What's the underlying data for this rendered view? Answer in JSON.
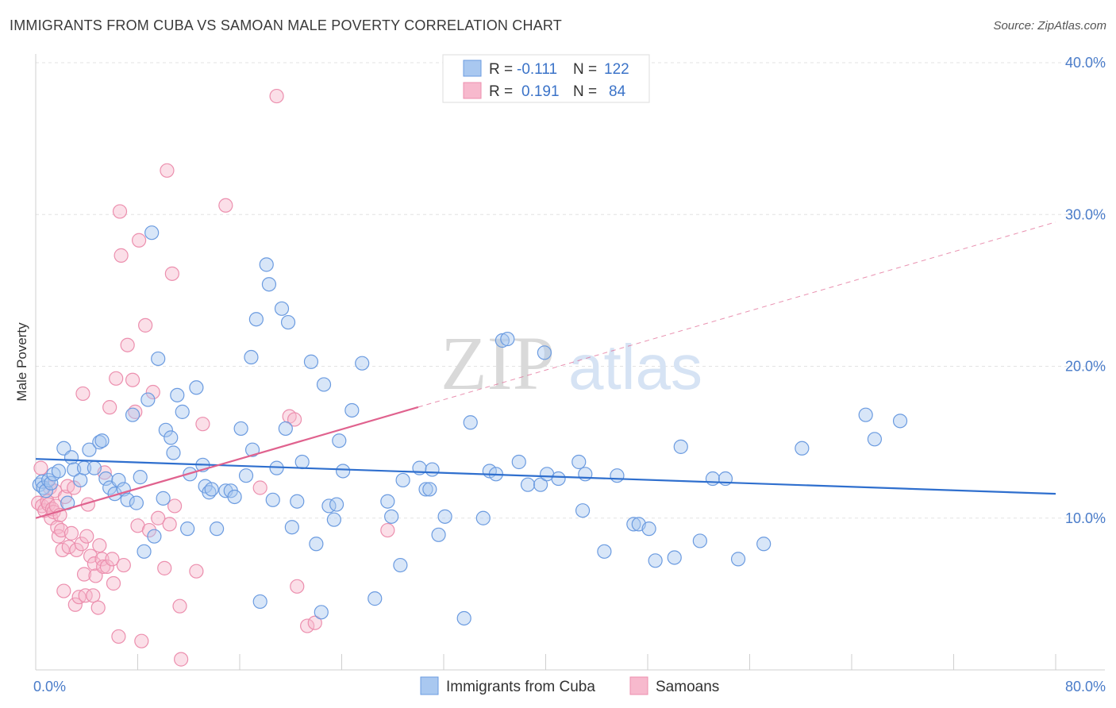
{
  "title": "IMMIGRANTS FROM CUBA VS SAMOAN MALE POVERTY CORRELATION CHART",
  "source": "Source: ZipAtlas.com",
  "watermark": {
    "zip": "ZIP",
    "atlas": "atlas"
  },
  "legend_top": [
    {
      "r_label": "R =",
      "r_value": "-0.111",
      "n_label": "N =",
      "n_value": "122"
    },
    {
      "r_label": "R =",
      "r_value": "0.191",
      "n_label": "N =",
      "n_value": "84"
    }
  ],
  "legend_bottom": [
    "Immigrants from Cuba",
    "Samoans"
  ],
  "chart_data": {
    "type": "scatter",
    "xlabel": "",
    "ylabel": "Male Poverty",
    "xlim": [
      0,
      80
    ],
    "ylim": [
      0,
      40
    ],
    "x_tick_labels": [
      {
        "value": 0,
        "label": "0.0%"
      },
      {
        "value": 80,
        "label": "80.0%"
      }
    ],
    "y_tick_labels": [
      {
        "value": 10,
        "label": "10.0%"
      },
      {
        "value": 20,
        "label": "20.0%"
      },
      {
        "value": 30,
        "label": "30.0%"
      },
      {
        "value": 40,
        "label": "40.0%"
      }
    ],
    "grid": true,
    "colors": {
      "cuba_fill": "#a9c8f0",
      "cuba_stroke": "#6b9be0",
      "cuba_line": "#2f6fce",
      "samoa_fill": "#f7b9cd",
      "samoa_stroke": "#ec8fae",
      "samoa_line": "#e0628e",
      "tick_label": "#4a7cc9"
    },
    "series": [
      {
        "name": "Immigrants from Cuba",
        "trend": {
          "x0": 0,
          "y0": 13.9,
          "x1": 80,
          "y1": 11.6
        },
        "points": [
          [
            0.3,
            12.2
          ],
          [
            0.5,
            12.4
          ],
          [
            0.6,
            12.0
          ],
          [
            0.8,
            11.8
          ],
          [
            1.0,
            12.5
          ],
          [
            1.2,
            12.3
          ],
          [
            1.4,
            12.9
          ],
          [
            1.8,
            13.1
          ],
          [
            2.2,
            14.6
          ],
          [
            2.5,
            11.0
          ],
          [
            2.8,
            14.0
          ],
          [
            3.0,
            13.2
          ],
          [
            3.5,
            12.5
          ],
          [
            3.8,
            13.3
          ],
          [
            4.2,
            14.5
          ],
          [
            4.6,
            13.3
          ],
          [
            5.0,
            15.0
          ],
          [
            5.2,
            15.1
          ],
          [
            5.5,
            12.6
          ],
          [
            5.8,
            12.0
          ],
          [
            6.2,
            11.6
          ],
          [
            6.5,
            12.5
          ],
          [
            6.9,
            11.9
          ],
          [
            7.2,
            11.2
          ],
          [
            7.6,
            16.8
          ],
          [
            7.9,
            11.0
          ],
          [
            8.2,
            12.7
          ],
          [
            8.5,
            7.8
          ],
          [
            8.8,
            17.8
          ],
          [
            9.1,
            28.8
          ],
          [
            9.3,
            8.8
          ],
          [
            9.6,
            20.5
          ],
          [
            10.0,
            11.3
          ],
          [
            10.2,
            15.8
          ],
          [
            10.6,
            15.3
          ],
          [
            10.8,
            14.3
          ],
          [
            11.1,
            18.1
          ],
          [
            11.5,
            17.0
          ],
          [
            11.9,
            9.3
          ],
          [
            12.1,
            12.9
          ],
          [
            12.6,
            18.6
          ],
          [
            13.1,
            13.5
          ],
          [
            13.3,
            12.1
          ],
          [
            13.6,
            11.7
          ],
          [
            13.8,
            11.9
          ],
          [
            14.2,
            9.3
          ],
          [
            14.9,
            11.8
          ],
          [
            15.3,
            11.8
          ],
          [
            15.6,
            11.4
          ],
          [
            16.1,
            15.9
          ],
          [
            16.5,
            12.8
          ],
          [
            16.9,
            20.6
          ],
          [
            17.0,
            14.5
          ],
          [
            17.3,
            23.1
          ],
          [
            17.6,
            4.5
          ],
          [
            18.1,
            26.7
          ],
          [
            18.3,
            25.4
          ],
          [
            18.6,
            11.2
          ],
          [
            18.9,
            13.3
          ],
          [
            19.3,
            23.8
          ],
          [
            19.6,
            15.9
          ],
          [
            19.8,
            22.9
          ],
          [
            20.1,
            9.4
          ],
          [
            20.5,
            11.1
          ],
          [
            20.9,
            13.7
          ],
          [
            21.6,
            20.3
          ],
          [
            22.0,
            8.3
          ],
          [
            22.4,
            3.8
          ],
          [
            22.6,
            18.8
          ],
          [
            23.0,
            10.8
          ],
          [
            23.4,
            9.9
          ],
          [
            23.6,
            10.9
          ],
          [
            23.8,
            15.1
          ],
          [
            24.1,
            13.1
          ],
          [
            24.8,
            17.1
          ],
          [
            25.6,
            20.2
          ],
          [
            26.6,
            4.7
          ],
          [
            27.6,
            11.1
          ],
          [
            27.9,
            10.1
          ],
          [
            28.6,
            6.9
          ],
          [
            28.8,
            12.5
          ],
          [
            30.1,
            13.3
          ],
          [
            30.6,
            11.9
          ],
          [
            30.9,
            11.9
          ],
          [
            31.1,
            13.2
          ],
          [
            31.6,
            8.9
          ],
          [
            32.1,
            10.1
          ],
          [
            33.6,
            3.4
          ],
          [
            34.1,
            16.3
          ],
          [
            35.1,
            10.0
          ],
          [
            35.6,
            13.1
          ],
          [
            36.1,
            12.9
          ],
          [
            36.6,
            21.7
          ],
          [
            37.0,
            21.8
          ],
          [
            37.9,
            13.7
          ],
          [
            38.6,
            12.2
          ],
          [
            39.6,
            12.2
          ],
          [
            39.9,
            20.9
          ],
          [
            40.1,
            12.9
          ],
          [
            41.0,
            12.6
          ],
          [
            42.6,
            13.7
          ],
          [
            42.9,
            10.5
          ],
          [
            43.1,
            12.9
          ],
          [
            44.6,
            7.8
          ],
          [
            45.6,
            12.8
          ],
          [
            46.9,
            9.6
          ],
          [
            47.3,
            9.6
          ],
          [
            48.1,
            9.3
          ],
          [
            48.6,
            7.2
          ],
          [
            50.1,
            7.4
          ],
          [
            50.6,
            14.7
          ],
          [
            52.1,
            8.5
          ],
          [
            53.1,
            12.6
          ],
          [
            54.1,
            12.6
          ],
          [
            55.1,
            7.3
          ],
          [
            57.1,
            8.3
          ],
          [
            60.1,
            14.6
          ],
          [
            65.1,
            16.8
          ],
          [
            65.8,
            15.2
          ],
          [
            67.8,
            16.4
          ]
        ]
      },
      {
        "name": "Samoans",
        "trend": {
          "x0": 0,
          "y0": 10.0,
          "x1": 80,
          "y1": 29.5,
          "solid_until_x": 30.0
        },
        "points": [
          [
            0.2,
            11.0
          ],
          [
            0.4,
            13.3
          ],
          [
            0.5,
            10.8
          ],
          [
            0.7,
            10.5
          ],
          [
            0.9,
            11.1
          ],
          [
            1.0,
            10.9
          ],
          [
            1.1,
            12.0
          ],
          [
            1.2,
            10.0
          ],
          [
            1.3,
            10.6
          ],
          [
            1.4,
            10.4
          ],
          [
            1.5,
            11.8
          ],
          [
            1.6,
            10.8
          ],
          [
            1.7,
            9.4
          ],
          [
            1.8,
            8.8
          ],
          [
            1.9,
            10.2
          ],
          [
            2.0,
            9.2
          ],
          [
            2.1,
            7.9
          ],
          [
            2.2,
            5.2
          ],
          [
            2.3,
            11.4
          ],
          [
            2.5,
            12.1
          ],
          [
            2.6,
            8.1
          ],
          [
            2.8,
            9.0
          ],
          [
            3.0,
            12.0
          ],
          [
            3.1,
            4.3
          ],
          [
            3.2,
            7.9
          ],
          [
            3.4,
            4.8
          ],
          [
            3.6,
            8.3
          ],
          [
            3.7,
            18.2
          ],
          [
            3.8,
            6.3
          ],
          [
            3.9,
            4.9
          ],
          [
            4.0,
            8.8
          ],
          [
            4.1,
            10.9
          ],
          [
            4.3,
            7.5
          ],
          [
            4.5,
            4.9
          ],
          [
            4.6,
            7.0
          ],
          [
            4.7,
            6.2
          ],
          [
            4.9,
            4.1
          ],
          [
            5.0,
            8.2
          ],
          [
            5.2,
            7.3
          ],
          [
            5.3,
            6.8
          ],
          [
            5.4,
            13.0
          ],
          [
            5.6,
            6.8
          ],
          [
            5.8,
            17.3
          ],
          [
            6.0,
            7.3
          ],
          [
            6.1,
            5.7
          ],
          [
            6.3,
            19.2
          ],
          [
            6.5,
            2.2
          ],
          [
            6.6,
            30.2
          ],
          [
            6.7,
            27.3
          ],
          [
            6.9,
            6.9
          ],
          [
            7.2,
            21.4
          ],
          [
            7.6,
            19.1
          ],
          [
            7.8,
            17.0
          ],
          [
            8.0,
            9.5
          ],
          [
            8.1,
            28.3
          ],
          [
            8.3,
            1.9
          ],
          [
            8.6,
            22.7
          ],
          [
            8.9,
            9.2
          ],
          [
            9.2,
            18.3
          ],
          [
            9.6,
            10.0
          ],
          [
            10.1,
            6.7
          ],
          [
            10.3,
            32.9
          ],
          [
            10.5,
            9.6
          ],
          [
            10.7,
            26.1
          ],
          [
            10.9,
            10.8
          ],
          [
            11.3,
            4.2
          ],
          [
            11.4,
            0.7
          ],
          [
            12.6,
            6.5
          ],
          [
            13.1,
            16.2
          ],
          [
            14.9,
            30.6
          ],
          [
            17.6,
            12.0
          ],
          [
            18.9,
            37.8
          ],
          [
            19.9,
            16.7
          ],
          [
            20.3,
            16.5
          ],
          [
            20.5,
            5.5
          ],
          [
            21.3,
            2.9
          ],
          [
            21.9,
            3.1
          ],
          [
            27.6,
            9.2
          ]
        ]
      }
    ]
  }
}
